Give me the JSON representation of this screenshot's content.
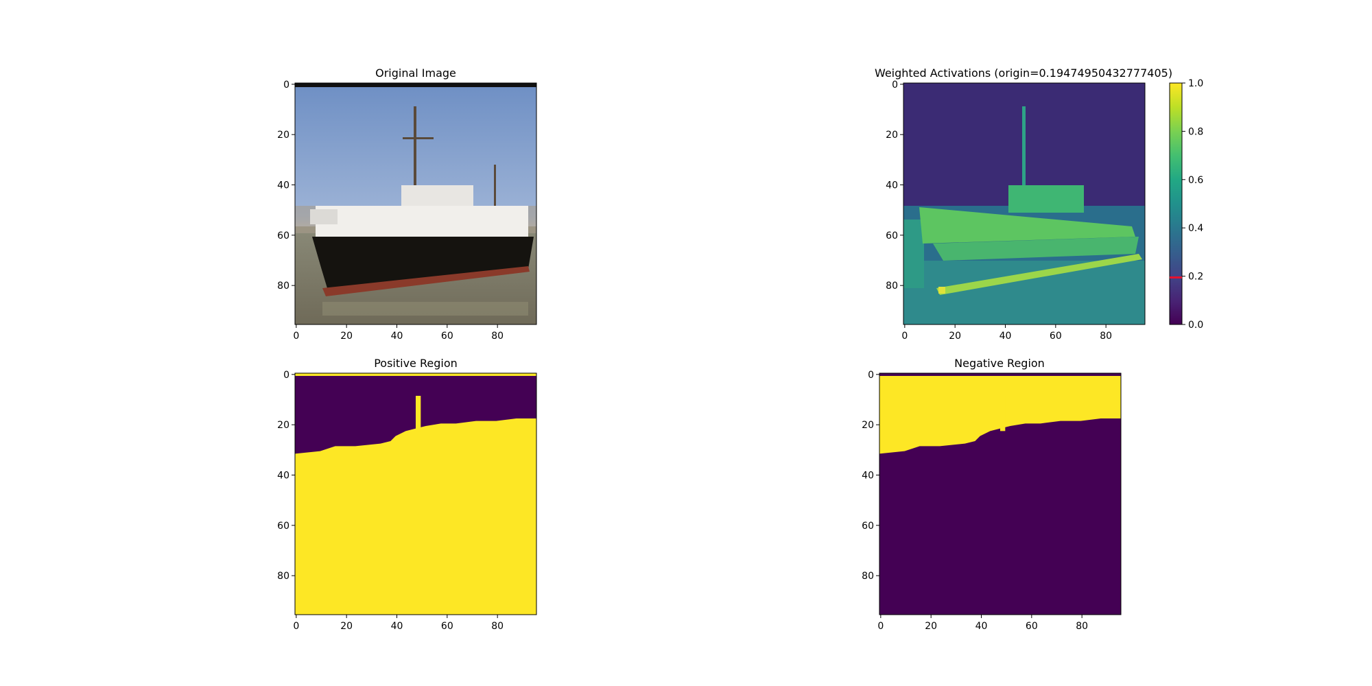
{
  "chart_data": [
    {
      "type": "image",
      "title": "Original Image",
      "xticks": [
        0,
        20,
        40,
        60,
        80
      ],
      "yticks": [
        0,
        20,
        40,
        60,
        80
      ],
      "xlim": [
        0,
        96
      ],
      "ylim": [
        96,
        0
      ],
      "content": "photo of a white and dark-hulled ship with masts on water under a blue sky"
    },
    {
      "type": "heatmap",
      "title": "Weighted Activations (origin=0.19474950432777405)",
      "xticks": [
        0,
        20,
        40,
        60,
        80
      ],
      "yticks": [
        0,
        20,
        40,
        60,
        80
      ],
      "xlim": [
        0,
        96
      ],
      "ylim": [
        96,
        0
      ],
      "colormap": "viridis",
      "colorbar": {
        "min": 0.0,
        "max": 1.0,
        "ticks": [
          "0.0",
          "0.2",
          "0.4",
          "0.6",
          "0.8",
          "1.0"
        ],
        "marker_value": 0.19474950432777405,
        "marker_color": "#e8112d"
      }
    },
    {
      "type": "heatmap",
      "title": "Positive Region",
      "xticks": [
        0,
        20,
        40,
        60,
        80
      ],
      "yticks": [
        0,
        20,
        40,
        60,
        80
      ],
      "xlim": [
        0,
        96
      ],
      "ylim": [
        96,
        0
      ],
      "colors": {
        "high": "#fde725",
        "low": "#440154"
      },
      "boundary": [
        [
          0,
          32
        ],
        [
          10,
          31
        ],
        [
          16,
          29
        ],
        [
          24,
          29
        ],
        [
          34,
          28
        ],
        [
          38,
          27
        ],
        [
          40,
          25
        ],
        [
          44,
          23
        ],
        [
          48,
          22
        ],
        [
          52,
          21
        ],
        [
          58,
          20
        ],
        [
          64,
          20
        ],
        [
          72,
          19
        ],
        [
          80,
          19
        ],
        [
          88,
          18
        ],
        [
          96,
          18
        ]
      ]
    },
    {
      "type": "heatmap",
      "title": "Negative Region",
      "xticks": [
        0,
        20,
        40,
        60,
        80
      ],
      "yticks": [
        0,
        20,
        40,
        60,
        80
      ],
      "xlim": [
        0,
        96
      ],
      "ylim": [
        96,
        0
      ],
      "colors": {
        "high": "#440154",
        "low": "#fde725"
      },
      "boundary": [
        [
          0,
          32
        ],
        [
          10,
          31
        ],
        [
          16,
          29
        ],
        [
          24,
          29
        ],
        [
          34,
          28
        ],
        [
          38,
          27
        ],
        [
          40,
          25
        ],
        [
          44,
          23
        ],
        [
          48,
          22
        ],
        [
          52,
          21
        ],
        [
          58,
          20
        ],
        [
          64,
          20
        ],
        [
          72,
          19
        ],
        [
          80,
          19
        ],
        [
          88,
          18
        ],
        [
          96,
          18
        ]
      ]
    }
  ]
}
